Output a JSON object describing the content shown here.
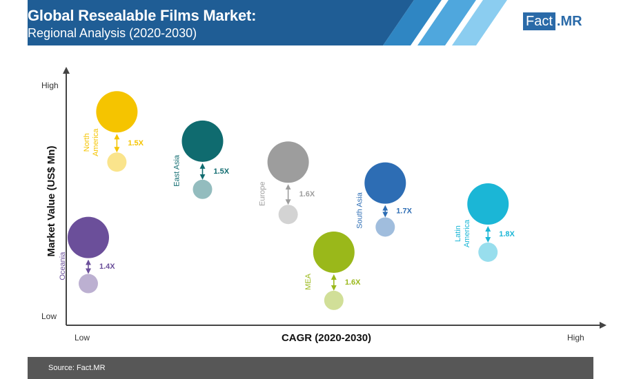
{
  "header": {
    "title": "Global Resealable Films Market:",
    "subtitle": "Regional Analysis (2020-2030)",
    "logo_left": "Fact",
    "logo_right": ".MR"
  },
  "footer": {
    "source": "Source: Fact.MR"
  },
  "chart_data": {
    "type": "scatter",
    "xlabel": "CAGR (2020-2030)",
    "ylabel": "Market Value (US$ Mn)",
    "x_ticks": [
      "Low",
      "High"
    ],
    "y_ticks": [
      "High",
      "Low"
    ],
    "grid": false,
    "series": [
      {
        "name": "North America",
        "label_lines": [
          "North",
          "America"
        ],
        "color": "#f5c400",
        "x": 1.5,
        "y_start": 6.9,
        "y_end": 9.3,
        "multiplier": "1.5X"
      },
      {
        "name": "East Asia",
        "label_lines": [
          "East Asia"
        ],
        "color": "#0f6b6f",
        "x": 3.0,
        "y_start": 5.6,
        "y_end": 7.9,
        "multiplier": "1.5X"
      },
      {
        "name": "Europe",
        "label_lines": [
          "Europe"
        ],
        "color": "#9d9d9d",
        "x": 4.5,
        "y_start": 4.4,
        "y_end": 6.9,
        "multiplier": "1.6X"
      },
      {
        "name": "South Asia",
        "label_lines": [
          "South Asia"
        ],
        "color": "#2d6db4",
        "x": 6.2,
        "y_start": 3.8,
        "y_end": 5.9,
        "multiplier": "1.7X"
      },
      {
        "name": "Latin America",
        "label_lines": [
          "Latin",
          "America"
        ],
        "color": "#1bb6d6",
        "x": 8.0,
        "y_start": 2.6,
        "y_end": 4.9,
        "multiplier": "1.8X"
      },
      {
        "name": "Oceania",
        "label_lines": [
          "Oceania"
        ],
        "color": "#6b4f9a",
        "x": 1.0,
        "y_start": 1.1,
        "y_end": 3.3,
        "multiplier": "1.4X"
      },
      {
        "name": "MEA",
        "label_lines": [
          "MEA"
        ],
        "color": "#9ab81a",
        "x": 5.3,
        "y_start": 0.3,
        "y_end": 2.6,
        "multiplier": "1.6X"
      }
    ]
  }
}
